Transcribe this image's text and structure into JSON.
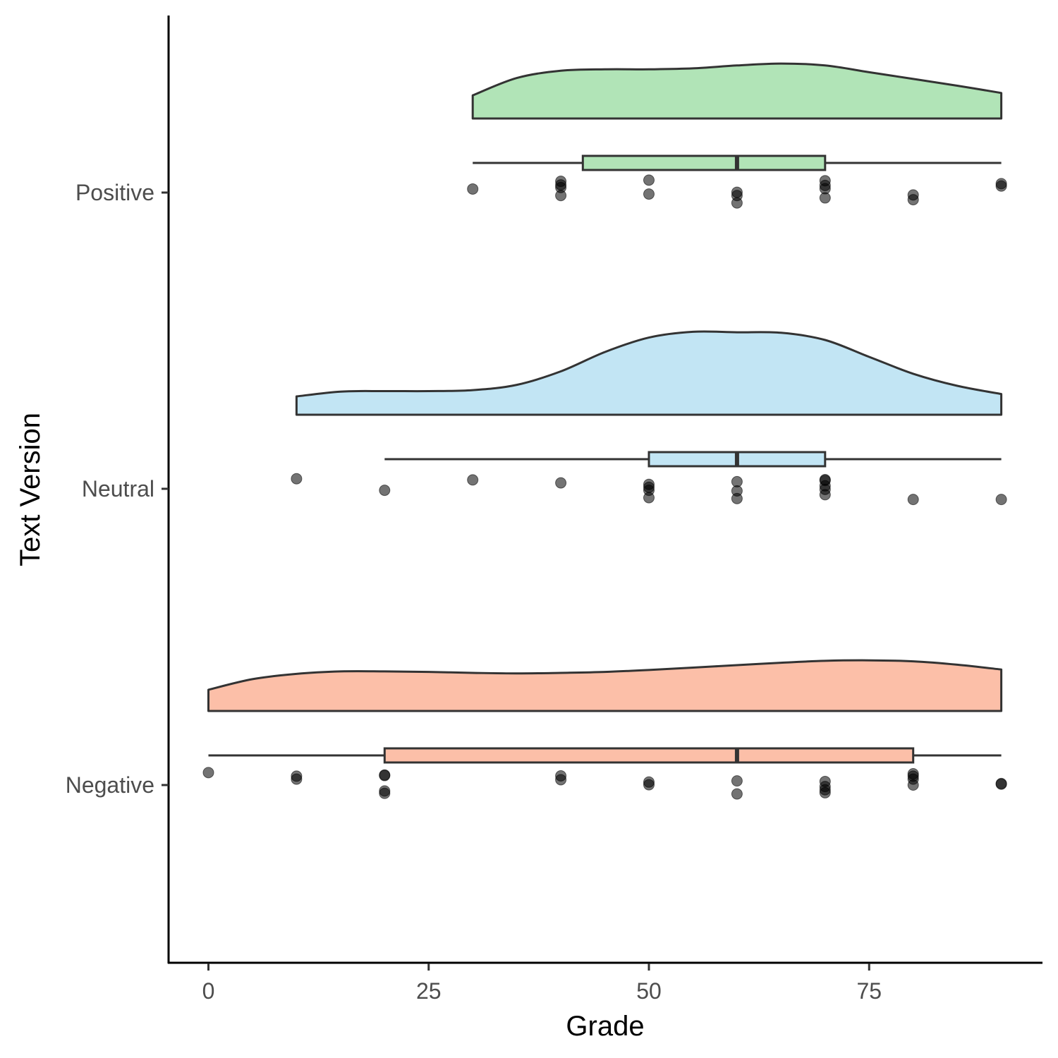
{
  "chart_data": {
    "type": "raincloud",
    "xlabel": "Grade",
    "ylabel": "Text Version",
    "xlim": [
      -4.5,
      94.5
    ],
    "x_ticks": [
      0,
      25,
      50,
      75
    ],
    "x_tick_labels": [
      "0",
      "25",
      "50",
      "75"
    ],
    "categories": [
      "Negative",
      "Neutral",
      "Positive"
    ],
    "groups": [
      {
        "name": "Negative",
        "fill": "#fcbfa8",
        "density": {
          "x": [
            0,
            5,
            10,
            15,
            20,
            25,
            30,
            35,
            40,
            45,
            50,
            55,
            60,
            65,
            70,
            75,
            80,
            85,
            90
          ],
          "y": [
            0.44,
            0.66,
            0.77,
            0.82,
            0.82,
            0.81,
            0.79,
            0.78,
            0.79,
            0.81,
            0.85,
            0.9,
            0.95,
            1.0,
            1.04,
            1.05,
            1.03,
            0.96,
            0.86
          ]
        },
        "box": {
          "min": 0,
          "q1": 20,
          "median": 60,
          "q3": 80,
          "max": 90
        },
        "points": [
          {
            "x": 0,
            "dy": 0.042
          },
          {
            "x": 10,
            "dy": 0.03
          },
          {
            "x": 10,
            "dy": 0.02
          },
          {
            "x": 20,
            "dy": 0.034
          },
          {
            "x": 20,
            "dy": 0.032
          },
          {
            "x": 20,
            "dy": -0.02
          },
          {
            "x": 20,
            "dy": -0.028
          },
          {
            "x": 40,
            "dy": 0.031
          },
          {
            "x": 40,
            "dy": 0.018
          },
          {
            "x": 50,
            "dy": 0.01
          },
          {
            "x": 50,
            "dy": 0.001
          },
          {
            "x": 60,
            "dy": 0.014
          },
          {
            "x": 60,
            "dy": -0.03
          },
          {
            "x": 70,
            "dy": 0.012
          },
          {
            "x": 70,
            "dy": -0.005
          },
          {
            "x": 70,
            "dy": -0.016
          },
          {
            "x": 70,
            "dy": -0.026
          },
          {
            "x": 80,
            "dy": 0.038
          },
          {
            "x": 80,
            "dy": 0.03
          },
          {
            "x": 80,
            "dy": 0.02
          },
          {
            "x": 80,
            "dy": 0.0
          },
          {
            "x": 90,
            "dy": 0.005
          },
          {
            "x": 90,
            "dy": 0.003
          }
        ]
      },
      {
        "name": "Neutral",
        "fill": "#c2e5f4",
        "density": {
          "x": [
            10,
            15,
            20,
            25,
            30,
            35,
            40,
            45,
            50,
            55,
            60,
            65,
            70,
            75,
            80,
            85,
            90
          ],
          "y": [
            0.38,
            0.48,
            0.49,
            0.49,
            0.51,
            0.62,
            0.9,
            1.3,
            1.6,
            1.72,
            1.71,
            1.7,
            1.55,
            1.2,
            0.85,
            0.6,
            0.43
          ]
        },
        "box": {
          "min": 20,
          "q1": 50,
          "median": 60,
          "q3": 70,
          "max": 90
        },
        "points": [
          {
            "x": 10,
            "dy": 0.034
          },
          {
            "x": 20,
            "dy": -0.005
          },
          {
            "x": 30,
            "dy": 0.03
          },
          {
            "x": 40,
            "dy": 0.02
          },
          {
            "x": 50,
            "dy": 0.015
          },
          {
            "x": 50,
            "dy": 0.005
          },
          {
            "x": 50,
            "dy": -0.005
          },
          {
            "x": 50,
            "dy": -0.03
          },
          {
            "x": 60,
            "dy": 0.024
          },
          {
            "x": 60,
            "dy": -0.007
          },
          {
            "x": 60,
            "dy": -0.033
          },
          {
            "x": 70,
            "dy": 0.031
          },
          {
            "x": 70,
            "dy": 0.028
          },
          {
            "x": 70,
            "dy": 0.01
          },
          {
            "x": 70,
            "dy": -0.002
          },
          {
            "x": 70,
            "dy": -0.02
          },
          {
            "x": 80,
            "dy": -0.036
          },
          {
            "x": 90,
            "dy": -0.036
          }
        ]
      },
      {
        "name": "Positive",
        "fill": "#b1e4b7",
        "density": {
          "x": [
            30,
            35,
            40,
            45,
            50,
            55,
            60,
            65,
            70,
            75,
            80,
            85,
            90
          ],
          "y": [
            0.48,
            0.84,
            0.99,
            1.02,
            1.02,
            1.04,
            1.1,
            1.14,
            1.1,
            0.96,
            0.82,
            0.68,
            0.53
          ]
        },
        "box": {
          "min": 30,
          "q1": 42.5,
          "median": 60,
          "q3": 70,
          "max": 90
        },
        "points": [
          {
            "x": 30,
            "dy": 0.012
          },
          {
            "x": 40,
            "dy": 0.038
          },
          {
            "x": 40,
            "dy": 0.026
          },
          {
            "x": 40,
            "dy": 0.017
          },
          {
            "x": 40,
            "dy": -0.01
          },
          {
            "x": 50,
            "dy": 0.042
          },
          {
            "x": 50,
            "dy": -0.005
          },
          {
            "x": 60,
            "dy": 0.001
          },
          {
            "x": 60,
            "dy": -0.01
          },
          {
            "x": 60,
            "dy": -0.035
          },
          {
            "x": 70,
            "dy": 0.04
          },
          {
            "x": 70,
            "dy": 0.024
          },
          {
            "x": 70,
            "dy": 0.013
          },
          {
            "x": 70,
            "dy": -0.018
          },
          {
            "x": 80,
            "dy": -0.008
          },
          {
            "x": 80,
            "dy": -0.024
          },
          {
            "x": 90,
            "dy": 0.03
          },
          {
            "x": 90,
            "dy": 0.022
          }
        ]
      }
    ]
  }
}
